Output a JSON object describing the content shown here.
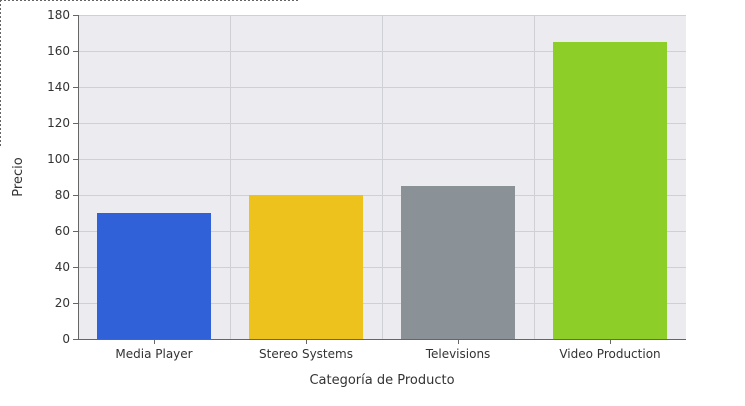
{
  "chart_data": {
    "type": "bar",
    "title": "",
    "xlabel": "Categoría de Producto",
    "ylabel": "Precio",
    "categories": [
      "Media Player",
      "Stereo Systems",
      "Televisions",
      "Video Production"
    ],
    "values": [
      70,
      80,
      85,
      165
    ],
    "ylim": [
      0,
      180
    ],
    "yticks": [
      0,
      20,
      40,
      60,
      80,
      100,
      120,
      140,
      160,
      180
    ],
    "bar_colors": [
      "#3061d9",
      "#edc21d",
      "#8a9298",
      "#8ece29"
    ],
    "grid": true,
    "plot_background": "#ebebf0",
    "grid_color": "#cfcfd6",
    "legend": "none"
  }
}
